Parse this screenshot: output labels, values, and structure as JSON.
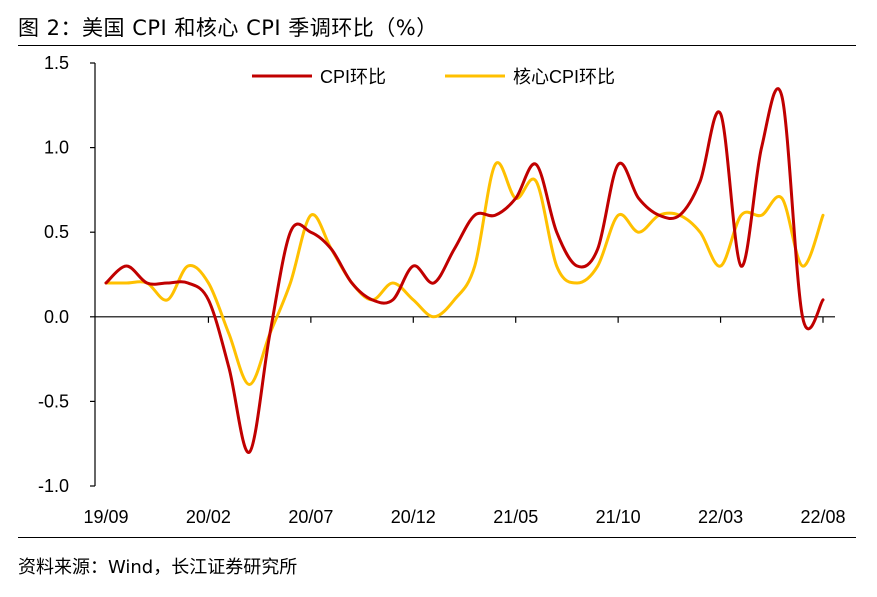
{
  "header": {
    "title": "图 2：美国 CPI 和核心 CPI 季调环比（%）"
  },
  "footer": {
    "source": "资料来源：Wind，长江证券研究所"
  },
  "colors": {
    "cpi": "#C00000",
    "core_cpi": "#FFC000",
    "axis": "#000000"
  },
  "chart_data": {
    "type": "line",
    "title": "美国 CPI 和核心 CPI 季调环比（%）",
    "xlabel": "",
    "ylabel": "",
    "ylim": [
      -1.0,
      1.5
    ],
    "y_ticks": [
      "1.5",
      "1.0",
      "0.5",
      "0.0",
      "-0.5",
      "-1.0"
    ],
    "y_tick_values": [
      1.5,
      1.0,
      0.5,
      0.0,
      -0.5,
      -1.0
    ],
    "x": [
      "19/09",
      "19/10",
      "19/11",
      "19/12",
      "20/01",
      "20/02",
      "20/03",
      "20/04",
      "20/05",
      "20/06",
      "20/07",
      "20/08",
      "20/09",
      "20/10",
      "20/11",
      "20/12",
      "21/01",
      "21/02",
      "21/03",
      "21/04",
      "21/05",
      "21/06",
      "21/07",
      "21/08",
      "21/09",
      "21/10",
      "21/11",
      "21/12",
      "22/01",
      "22/02",
      "22/03",
      "22/04",
      "22/05",
      "22/06",
      "22/07",
      "22/08"
    ],
    "x_tick_labels": [
      {
        "label": "19/09",
        "index": 0
      },
      {
        "label": "20/02",
        "index": 5
      },
      {
        "label": "20/07",
        "index": 10
      },
      {
        "label": "20/12",
        "index": 15
      },
      {
        "label": "21/05",
        "index": 20
      },
      {
        "label": "21/10",
        "index": 25
      },
      {
        "label": "22/03",
        "index": 30
      },
      {
        "label": "22/08",
        "index": 35
      }
    ],
    "legend_position": "top-center",
    "series": [
      {
        "name": "CPI环比",
        "color": "#C00000",
        "values": [
          0.2,
          0.3,
          0.2,
          0.2,
          0.2,
          0.1,
          -0.3,
          -0.8,
          -0.1,
          0.5,
          0.5,
          0.4,
          0.2,
          0.1,
          0.1,
          0.3,
          0.2,
          0.4,
          0.6,
          0.6,
          0.7,
          0.9,
          0.5,
          0.3,
          0.4,
          0.9,
          0.7,
          0.6,
          0.6,
          0.8,
          1.2,
          0.3,
          1.0,
          1.3,
          0.0,
          0.1
        ]
      },
      {
        "name": "核心CPI环比",
        "color": "#FFC000",
        "values": [
          0.2,
          0.2,
          0.2,
          0.1,
          0.3,
          0.2,
          -0.1,
          -0.4,
          -0.1,
          0.2,
          0.6,
          0.4,
          0.2,
          0.1,
          0.2,
          0.1,
          0.0,
          0.1,
          0.3,
          0.9,
          0.7,
          0.8,
          0.3,
          0.2,
          0.3,
          0.6,
          0.5,
          0.6,
          0.6,
          0.5,
          0.3,
          0.6,
          0.6,
          0.7,
          0.3,
          0.6
        ]
      }
    ]
  }
}
